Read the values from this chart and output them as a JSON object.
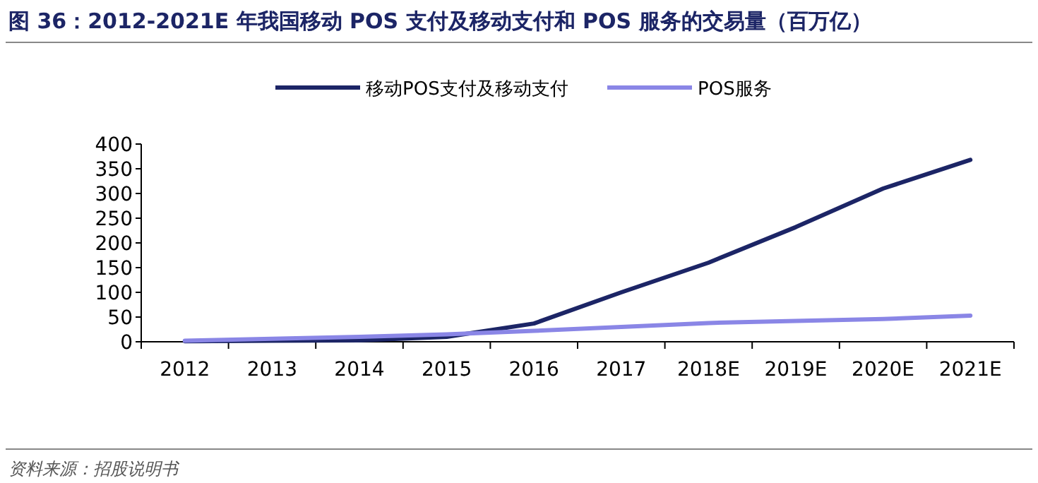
{
  "chart_data": {
    "type": "line",
    "title": "图 36：2012-2021E 年我国移动 POS 支付及移动支付和 POS 服务的交易量（百万亿）",
    "categories": [
      "2012",
      "2013",
      "2014",
      "2015",
      "2016",
      "2017",
      "2018E",
      "2019E",
      "2020E",
      "2021E"
    ],
    "series": [
      {
        "name": "移动POS支付及移动支付",
        "color": "#1c2566",
        "values": [
          1,
          2,
          3,
          10,
          37,
          100,
          160,
          232,
          310,
          368
        ]
      },
      {
        "name": "POS服务",
        "color": "#8a86e6",
        "values": [
          2,
          6,
          10,
          15,
          22,
          30,
          38,
          42,
          46,
          53
        ]
      }
    ],
    "ylim": [
      0,
      400
    ],
    "yticks": [
      0,
      50,
      100,
      150,
      200,
      250,
      300,
      350,
      400
    ],
    "legend": "top",
    "grid": false,
    "marker": "none",
    "line_style": "solid",
    "annotations": [
      "资料来源：招股说明书"
    ]
  }
}
